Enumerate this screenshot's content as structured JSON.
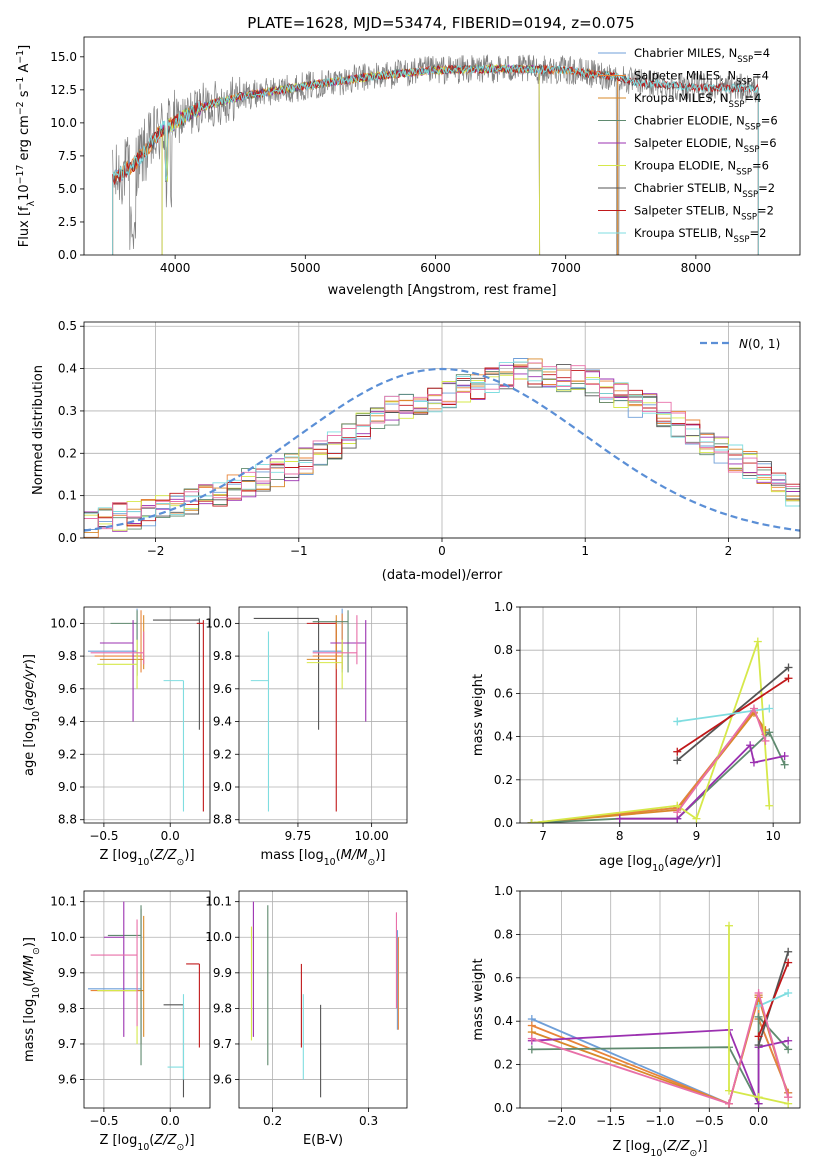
{
  "figure_title": "PLATE=1628, MJD=53474, FIBERID=0194, z=0.075",
  "colors": {
    "Chabrier MILES": "#6f9fd8",
    "Salpeter MILES": "#e8843a",
    "Kroupa MILES": "#d9892a",
    "Chabrier ELODIE": "#5f8a6f",
    "Salpeter ELODIE": "#9b30b0",
    "Kroupa ELODIE": "#d6e84a",
    "Chabrier STELIB": "#555555",
    "Salpeter STELIB": "#c0181a",
    "Kroupa STELIB": "#7fdde0",
    "data": "#808080",
    "normal": "#5b8fd6",
    "pink": "#e86fa8"
  },
  "chart_data": [
    {
      "panel": "spectrum",
      "type": "line",
      "title": "PLATE=1628, MJD=53474, FIBERID=0194, z=0.075",
      "xlabel": "wavelength [Angstrom, rest frame]",
      "ylabel": "Flux [f_λ 10^-17 erg cm^-2 s^-1 A^-1]",
      "xlim": [
        3300,
        8800
      ],
      "ylim": [
        0,
        16.5
      ],
      "xticks": [
        "4000",
        "5000",
        "6000",
        "7000",
        "8000"
      ],
      "yticks": [
        "0.0",
        "2.5",
        "5.0",
        "7.5",
        "10.0",
        "12.5",
        "15.0"
      ],
      "grid": false,
      "legend_position": "right",
      "legend": [
        {
          "label": "Chabrier MILES, N_SSP=4",
          "color": "#6f9fd8"
        },
        {
          "label": "Salpeter MILES, N_SSP=4",
          "color": "#e8843a"
        },
        {
          "label": "Kroupa MILES, N_SSP=4",
          "color": "#d9892a"
        },
        {
          "label": "Chabrier ELODIE, N_SSP=6",
          "color": "#5f8a6f"
        },
        {
          "label": "Salpeter ELODIE, N_SSP=6",
          "color": "#9b30b0"
        },
        {
          "label": "Kroupa ELODIE, N_SSP=6",
          "color": "#d6e84a"
        },
        {
          "label": "Chabrier STELIB, N_SSP=2",
          "color": "#555555"
        },
        {
          "label": "Salpeter STELIB, N_SSP=2",
          "color": "#c0181a"
        },
        {
          "label": "Kroupa STELIB, N_SSP=2",
          "color": "#7fdde0"
        }
      ],
      "continuum": [
        [
          3500,
          5.5
        ],
        [
          3700,
          7.0
        ],
        [
          3900,
          9.5
        ],
        [
          4000,
          10.0
        ],
        [
          4200,
          11.2
        ],
        [
          4500,
          12.0
        ],
        [
          5000,
          12.8
        ],
        [
          5500,
          13.5
        ],
        [
          6000,
          14.0
        ],
        [
          6500,
          14.1
        ],
        [
          7000,
          14.0
        ],
        [
          7200,
          13.7
        ],
        [
          7400,
          13.5
        ],
        [
          7500,
          13.1
        ],
        [
          8000,
          12.7
        ],
        [
          8500,
          12.6
        ]
      ]
    },
    {
      "panel": "residuals",
      "type": "line",
      "xlabel": "(data-model)/error",
      "ylabel": "Normed distribution",
      "xlim": [
        -2.5,
        2.5
      ],
      "ylim": [
        0,
        0.51
      ],
      "xticks": [
        "−2",
        "−1",
        "0",
        "1",
        "2"
      ],
      "yticks": [
        "0.0",
        "0.1",
        "0.2",
        "0.3",
        "0.4",
        "0.5"
      ],
      "grid": true,
      "legend_position": "top-right",
      "legend": [
        {
          "label": "N(0, 1)",
          "color": "#5b8fd6"
        }
      ],
      "bin_width": 0.1,
      "x_start": -2.5,
      "base_histogram": [
        0.035,
        0.04,
        0.05,
        0.055,
        0.06,
        0.07,
        0.08,
        0.09,
        0.1,
        0.11,
        0.12,
        0.13,
        0.14,
        0.155,
        0.17,
        0.18,
        0.2,
        0.22,
        0.24,
        0.26,
        0.28,
        0.3,
        0.31,
        0.32,
        0.33,
        0.34,
        0.355,
        0.36,
        0.37,
        0.38,
        0.39,
        0.39,
        0.385,
        0.38,
        0.375,
        0.37,
        0.35,
        0.335,
        0.32,
        0.31,
        0.29,
        0.27,
        0.25,
        0.23,
        0.21,
        0.19,
        0.17,
        0.15,
        0.13,
        0.11,
        0.1,
        0.09,
        0.08,
        0.07,
        0.06,
        0.055,
        0.05,
        0.045,
        0.04,
        0.035,
        0.03,
        0.03,
        0.025,
        0.025,
        0.02,
        0.02,
        0.02,
        0.02,
        0.02,
        0.02
      ],
      "normal_curve": "mean 0, sigma 1"
    },
    {
      "panel": "age_vs_Z",
      "type": "scatter",
      "xlabel": "Z [log10(Z/Z⊙)]",
      "ylabel": "age [log10(age/yr)]",
      "xlim": [
        -0.65,
        0.3
      ],
      "ylim": [
        8.78,
        10.1
      ],
      "xticks": [
        "−0.5",
        "0.0"
      ],
      "yticks": [
        "8.8",
        "9.0",
        "9.2",
        "9.4",
        "9.6",
        "9.8",
        "10.0"
      ],
      "grid": true,
      "errorbars": [
        {
          "x": 0.22,
          "xerr": 0.35,
          "y": 10.02,
          "ylo": 9.35,
          "yhi": 10.03,
          "color": "#555555"
        },
        {
          "x": 0.25,
          "xerr": 0.05,
          "y": 10.0,
          "ylo": 8.85,
          "yhi": 10.02,
          "color": "#c0181a"
        },
        {
          "x": -0.25,
          "xerr": 0.37,
          "y": 9.83,
          "ylo": 9.68,
          "yhi": 10.09,
          "color": "#6f9fd8"
        },
        {
          "x": -0.22,
          "xerr": 0.35,
          "y": 9.8,
          "ylo": 9.7,
          "yhi": 10.08,
          "color": "#e8843a"
        },
        {
          "x": -0.2,
          "xerr": 0.33,
          "y": 9.78,
          "ylo": 9.72,
          "yhi": 10.05,
          "color": "#d9892a"
        },
        {
          "x": -0.25,
          "xerr": 0.2,
          "y": 10.0,
          "ylo": 9.68,
          "yhi": 10.08,
          "color": "#5f8a6f"
        },
        {
          "x": -0.28,
          "xerr": 0.25,
          "y": 9.88,
          "ylo": 9.4,
          "yhi": 10.02,
          "color": "#9b30b0"
        },
        {
          "x": -0.25,
          "xerr": 0.3,
          "y": 9.75,
          "ylo": 9.6,
          "yhi": 9.9,
          "color": "#d6e84a"
        },
        {
          "x": 0.1,
          "xerr": 0.15,
          "y": 9.65,
          "ylo": 8.85,
          "yhi": 9.65,
          "color": "#7fdde0"
        },
        {
          "x": -0.2,
          "xerr": 0.4,
          "y": 9.82,
          "ylo": 9.75,
          "yhi": 9.95,
          "color": "#e86fa8"
        }
      ]
    },
    {
      "panel": "age_vs_mass",
      "type": "scatter",
      "xlabel": "mass [log10(M/M⊙)]",
      "xlim": [
        9.55,
        10.12
      ],
      "ylim": [
        8.78,
        10.1
      ],
      "xticks": [
        "9.75",
        "10.00"
      ],
      "yticks": [
        "8.8",
        "9.0",
        "9.2",
        "9.4",
        "9.6",
        "9.8",
        "10.0"
      ],
      "grid": true,
      "errorbars": [
        {
          "x": 9.82,
          "xerr": 0.22,
          "y": 10.03,
          "ylo": 9.35,
          "yhi": 10.03,
          "color": "#555555"
        },
        {
          "x": 9.88,
          "xerr": 0.1,
          "y": 10.0,
          "ylo": 8.85,
          "yhi": 10.02,
          "color": "#c0181a"
        },
        {
          "x": 9.9,
          "xerr": 0.1,
          "y": 9.83,
          "ylo": 9.7,
          "yhi": 10.09,
          "color": "#6f9fd8"
        },
        {
          "x": 9.9,
          "xerr": 0.1,
          "y": 9.8,
          "ylo": 9.72,
          "yhi": 10.06,
          "color": "#e8843a"
        },
        {
          "x": 9.88,
          "xerr": 0.1,
          "y": 9.78,
          "ylo": 9.72,
          "yhi": 10.05,
          "color": "#d9892a"
        },
        {
          "x": 9.92,
          "xerr": 0.12,
          "y": 10.01,
          "ylo": 9.7,
          "yhi": 10.08,
          "color": "#5f8a6f"
        },
        {
          "x": 9.98,
          "xerr": 0.12,
          "y": 9.88,
          "ylo": 9.4,
          "yhi": 10.02,
          "color": "#9b30b0"
        },
        {
          "x": 9.9,
          "xerr": 0.12,
          "y": 9.76,
          "ylo": 9.6,
          "yhi": 9.9,
          "color": "#d6e84a"
        },
        {
          "x": 9.65,
          "xerr": 0.06,
          "y": 9.65,
          "ylo": 8.85,
          "yhi": 9.95,
          "color": "#7fdde0"
        },
        {
          "x": 9.95,
          "xerr": 0.15,
          "y": 9.82,
          "ylo": 9.75,
          "yhi": 10.05,
          "color": "#e86fa8"
        }
      ]
    },
    {
      "panel": "mass_weight_vs_age",
      "type": "line",
      "xlabel": "age [log10(age/yr)]",
      "ylabel": "mass weight",
      "xlim": [
        6.7,
        10.35
      ],
      "ylim": [
        0,
        1.0
      ],
      "xticks": [
        "7",
        "8",
        "9",
        "10"
      ],
      "yticks": [
        "0.0",
        "0.2",
        "0.4",
        "0.6",
        "0.8",
        "1.0"
      ],
      "grid": true,
      "series": [
        {
          "color": "#6f9fd8",
          "x": [
            6.85,
            8.75,
            9.75,
            9.9
          ],
          "y": [
            0.0,
            0.07,
            0.52,
            0.41
          ]
        },
        {
          "color": "#e8843a",
          "x": [
            6.85,
            8.75,
            9.75,
            9.9
          ],
          "y": [
            0.0,
            0.07,
            0.52,
            0.41
          ]
        },
        {
          "color": "#d9892a",
          "x": [
            6.85,
            8.75,
            9.75,
            9.9
          ],
          "y": [
            0.0,
            0.06,
            0.51,
            0.43
          ]
        },
        {
          "color": "#5f8a6f",
          "x": [
            6.85,
            8.0,
            8.75,
            9.95,
            10.15
          ],
          "y": [
            0.0,
            0.02,
            0.02,
            0.42,
            0.27
          ]
        },
        {
          "color": "#9b30b0",
          "x": [
            8.0,
            8.75,
            9.7,
            9.75,
            10.15
          ],
          "y": [
            0.02,
            0.02,
            0.36,
            0.28,
            0.31
          ]
        },
        {
          "color": "#d6e84a",
          "x": [
            6.85,
            8.75,
            9.0,
            9.8,
            9.95
          ],
          "y": [
            0.0,
            0.08,
            0.02,
            0.84,
            0.08
          ]
        },
        {
          "color": "#555555",
          "x": [
            8.75,
            10.2
          ],
          "y": [
            0.29,
            0.72
          ]
        },
        {
          "color": "#c0181a",
          "x": [
            8.75,
            10.2
          ],
          "y": [
            0.33,
            0.67
          ]
        },
        {
          "color": "#7fdde0",
          "x": [
            8.75,
            9.95
          ],
          "y": [
            0.47,
            0.53
          ]
        },
        {
          "color": "#e86fa8",
          "x": [
            8.75,
            9.75,
            9.9
          ],
          "y": [
            0.05,
            0.53,
            0.38
          ]
        }
      ]
    },
    {
      "panel": "mass_vs_Z",
      "type": "scatter",
      "xlabel": "Z [log10(Z/Z⊙)]",
      "ylabel": "mass [log10(M/M⊙)]",
      "xlim": [
        -0.65,
        0.3
      ],
      "ylim": [
        9.52,
        10.13
      ],
      "xticks": [
        "−0.5",
        "0.0"
      ],
      "yticks": [
        "9.6",
        "9.7",
        "9.8",
        "9.9",
        "10.0",
        "10.1"
      ],
      "grid": true,
      "errorbars": [
        {
          "x": -0.22,
          "xerr": 0.4,
          "y": 9.855,
          "ylo": 9.7,
          "yhi": 10.08,
          "color": "#6f9fd8"
        },
        {
          "x": -0.22,
          "xerr": 0.38,
          "y": 9.85,
          "ylo": 9.7,
          "yhi": 10.08,
          "color": "#e8843a"
        },
        {
          "x": -0.2,
          "xerr": 0.35,
          "y": 9.85,
          "ylo": 9.72,
          "yhi": 10.06,
          "color": "#d9892a"
        },
        {
          "x": -0.22,
          "xerr": 0.25,
          "y": 10.005,
          "ylo": 9.64,
          "yhi": 10.09,
          "color": "#5f8a6f"
        },
        {
          "x": -0.35,
          "xerr": 0.15,
          "y": 10.0,
          "ylo": 9.72,
          "yhi": 10.1,
          "color": "#9b30b0"
        },
        {
          "x": -0.25,
          "xerr": 0.3,
          "y": 9.85,
          "ylo": 9.7,
          "yhi": 9.9,
          "color": "#d6e84a"
        },
        {
          "x": 0.1,
          "xerr": 0.15,
          "y": 9.81,
          "ylo": 9.55,
          "yhi": 9.81,
          "color": "#555555"
        },
        {
          "x": 0.22,
          "xerr": 0.1,
          "y": 9.925,
          "ylo": 9.69,
          "yhi": 9.925,
          "color": "#c0181a"
        },
        {
          "x": 0.1,
          "xerr": 0.12,
          "y": 9.635,
          "ylo": 9.6,
          "yhi": 9.84,
          "color": "#7fdde0"
        },
        {
          "x": -0.25,
          "xerr": 0.35,
          "y": 9.95,
          "ylo": 9.75,
          "yhi": 10.05,
          "color": "#e86fa8"
        }
      ]
    },
    {
      "panel": "mass_vs_EBV",
      "type": "scatter",
      "xlabel": "E(B-V)",
      "xlim": [
        0.165,
        0.34
      ],
      "ylim": [
        9.52,
        10.13
      ],
      "xticks": [
        "0.2",
        "0.3"
      ],
      "yticks": [
        "9.6",
        "9.7",
        "9.8",
        "9.9",
        "10.0",
        "10.1"
      ],
      "grid": true,
      "errorbars": [
        {
          "x": 0.18,
          "ylo": 9.72,
          "yhi": 10.1,
          "color": "#9b30b0"
        },
        {
          "x": 0.178,
          "ylo": 9.71,
          "yhi": 10.03,
          "color": "#d6e84a"
        },
        {
          "x": 0.195,
          "ylo": 9.64,
          "yhi": 10.09,
          "color": "#5f8a6f"
        },
        {
          "x": 0.23,
          "ylo": 9.69,
          "yhi": 9.925,
          "color": "#c0181a"
        },
        {
          "x": 0.232,
          "ylo": 9.6,
          "yhi": 9.84,
          "color": "#7fdde0"
        },
        {
          "x": 0.25,
          "ylo": 9.55,
          "yhi": 9.81,
          "color": "#555555"
        },
        {
          "x": 0.33,
          "ylo": 9.74,
          "yhi": 10.02,
          "color": "#6f9fd8"
        },
        {
          "x": 0.331,
          "ylo": 9.74,
          "yhi": 10.0,
          "color": "#e8843a"
        },
        {
          "x": 0.329,
          "ylo": 9.8,
          "yhi": 10.07,
          "color": "#e86fa8"
        }
      ]
    },
    {
      "panel": "mass_weight_vs_Z",
      "type": "line",
      "xlabel": "Z [log10(Z/Z⊙)]",
      "ylabel": "mass weight",
      "xlim": [
        -2.42,
        0.42
      ],
      "ylim": [
        0,
        1.0
      ],
      "xticks": [
        "−2.0",
        "−1.5",
        "−1.0",
        "−0.5",
        "0.0"
      ],
      "yticks": [
        "0.0",
        "0.2",
        "0.4",
        "0.6",
        "0.8",
        "1.0"
      ],
      "grid": true,
      "series": [
        {
          "color": "#6f9fd8",
          "x": [
            -2.3,
            -0.3,
            0.0,
            0.0,
            0.3
          ],
          "y": [
            0.41,
            0.02,
            0.52,
            0.41,
            0.07
          ]
        },
        {
          "color": "#e8843a",
          "x": [
            -2.3,
            -0.3,
            0.0,
            0.0,
            0.3
          ],
          "y": [
            0.38,
            0.02,
            0.52,
            0.41,
            0.07
          ]
        },
        {
          "color": "#d9892a",
          "x": [
            -2.3,
            -0.3,
            0.0,
            0.3
          ],
          "y": [
            0.35,
            0.02,
            0.51,
            0.05
          ]
        },
        {
          "color": "#5f8a6f",
          "x": [
            -2.3,
            -0.3,
            0.0,
            0.0,
            0.3
          ],
          "y": [
            0.27,
            0.28,
            0.02,
            0.42,
            0.27
          ]
        },
        {
          "color": "#9b30b0",
          "x": [
            -2.3,
            -0.3,
            0.0,
            0.0,
            0.3
          ],
          "y": [
            0.31,
            0.36,
            0.02,
            0.28,
            0.31
          ]
        },
        {
          "color": "#d6e84a",
          "x": [
            -0.3,
            -0.3,
            0.0,
            0.3
          ],
          "y": [
            0.84,
            0.08,
            0.05,
            0.02
          ]
        },
        {
          "color": "#555555",
          "x": [
            0.0,
            0.3
          ],
          "y": [
            0.29,
            0.72
          ]
        },
        {
          "color": "#c0181a",
          "x": [
            0.0,
            0.3
          ],
          "y": [
            0.33,
            0.67
          ]
        },
        {
          "color": "#7fdde0",
          "x": [
            0.0,
            0.3
          ],
          "y": [
            0.47,
            0.53
          ]
        },
        {
          "color": "#e86fa8",
          "x": [
            -2.3,
            -0.3,
            0.0,
            0.3
          ],
          "y": [
            0.32,
            0.02,
            0.53,
            0.05
          ]
        }
      ]
    }
  ]
}
